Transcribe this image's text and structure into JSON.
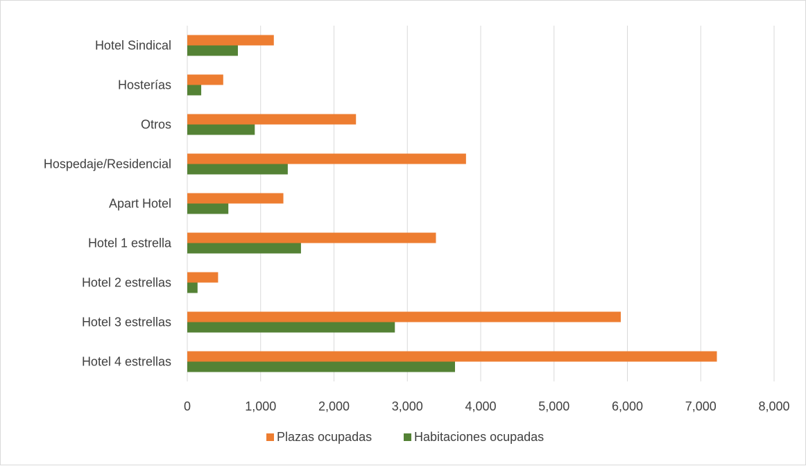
{
  "chart_data": {
    "type": "bar",
    "orientation": "horizontal",
    "categories": [
      "Hotel 4 estrellas",
      "Hotel 3 estrellas",
      "Hotel 2 estrellas",
      "Hotel 1 estrella",
      "Apart Hotel",
      "Hospedaje/Residencial",
      "Otros",
      "Hosterías",
      "Hotel Sindical"
    ],
    "series": [
      {
        "name": "Plazas ocupadas",
        "color": "#ED7D31",
        "values": [
          7220,
          5910,
          420,
          3390,
          1310,
          3800,
          2300,
          490,
          1180
        ]
      },
      {
        "name": "Habitaciones ocupadas",
        "color": "#548235",
        "values": [
          3650,
          2830,
          140,
          1550,
          560,
          1370,
          920,
          190,
          690
        ]
      }
    ],
    "x_ticks": [
      "0",
      "1,000",
      "2,000",
      "3,000",
      "4,000",
      "5,000",
      "6,000",
      "7,000",
      "8,000"
    ],
    "xlim": [
      0,
      8000
    ],
    "grid": "vertical",
    "legend_position": "bottom"
  }
}
